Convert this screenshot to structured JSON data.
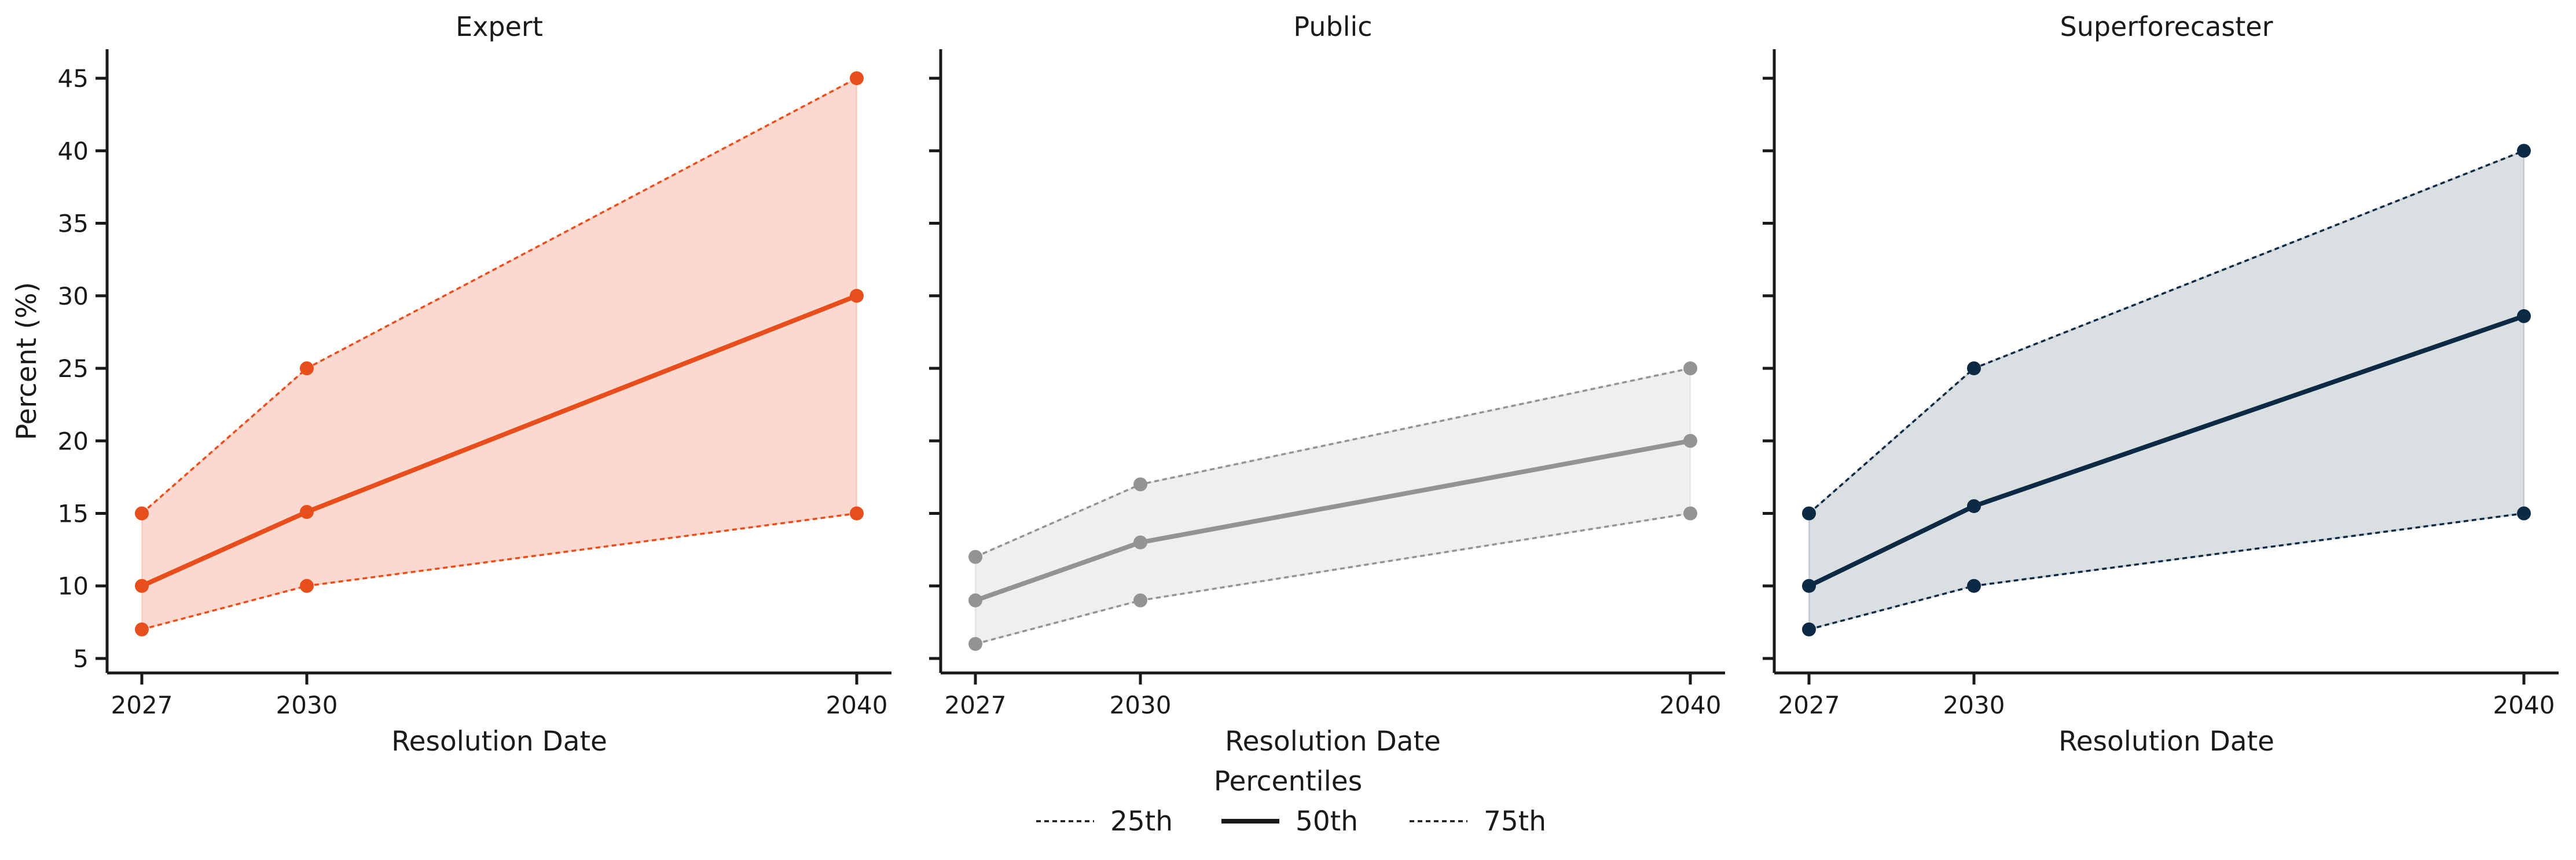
{
  "chart_data": {
    "type": "line",
    "ylabel": "Percent (%)",
    "xlabel": "Resolution Date",
    "x": [
      2027,
      2030,
      2040
    ],
    "xticks": [
      "2027",
      "2030",
      "2040"
    ],
    "ylim": [
      4,
      47
    ],
    "yticks": [
      5,
      10,
      15,
      20,
      25,
      30,
      35,
      40,
      45
    ],
    "shared_y": true,
    "grid": false,
    "legend": {
      "title": "Percentiles",
      "placement": "bottom-center",
      "entries": [
        "25th",
        "50th",
        "75th"
      ]
    },
    "panels": [
      {
        "title": "Expert",
        "color": "#e84e1b",
        "band_fill": "#f9d9d0",
        "series": [
          {
            "name": "25th",
            "values": [
              7,
              10,
              15
            ]
          },
          {
            "name": "50th",
            "values": [
              10,
              15.1,
              30
            ]
          },
          {
            "name": "75th",
            "values": [
              15,
              25,
              45
            ]
          }
        ]
      },
      {
        "title": "Public",
        "color": "#939393",
        "band_fill": "#efefef",
        "series": [
          {
            "name": "25th",
            "values": [
              6,
              9,
              15
            ]
          },
          {
            "name": "50th",
            "values": [
              9,
              13,
              20
            ]
          },
          {
            "name": "75th",
            "values": [
              12,
              17,
              25
            ]
          }
        ]
      },
      {
        "title": "Superforecaster",
        "color": "#0d2a45",
        "band_fill": "#dadfe2",
        "series": [
          {
            "name": "25th",
            "values": [
              7,
              10,
              15
            ]
          },
          {
            "name": "50th",
            "values": [
              10,
              15.5,
              28.6
            ]
          },
          {
            "name": "75th",
            "values": [
              15,
              25,
              40
            ]
          }
        ]
      }
    ]
  }
}
